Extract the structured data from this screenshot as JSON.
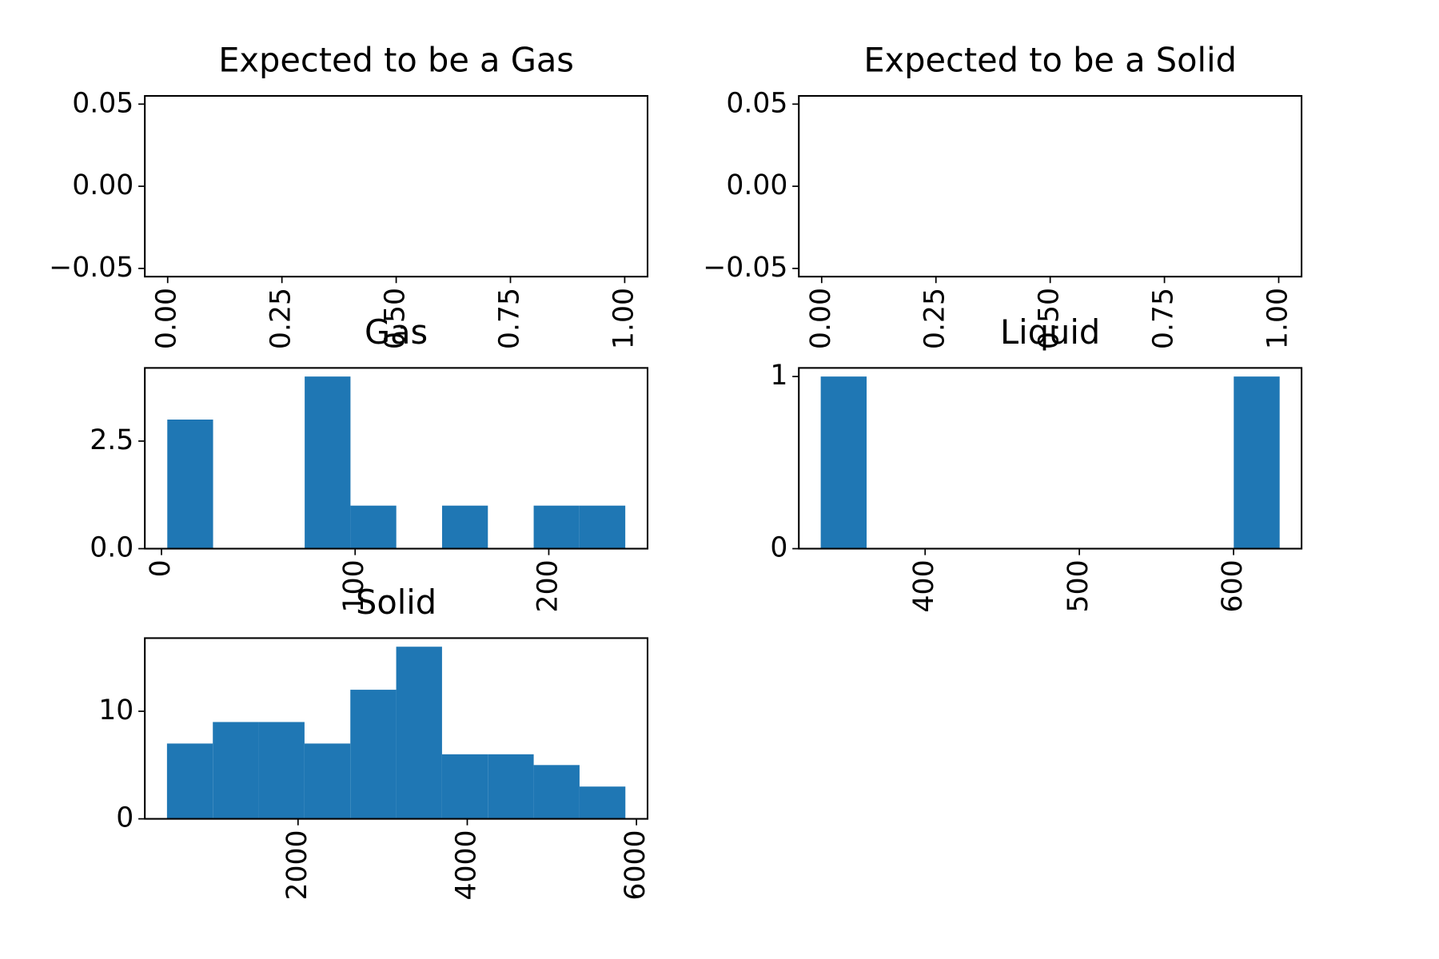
{
  "chart_data": [
    {
      "type": "hist",
      "title": "Expected to be a Gas",
      "xlim": [
        -0.05,
        1.05
      ],
      "xticks": [
        {
          "value": 0,
          "label": "0.00"
        },
        {
          "value": 0.25,
          "label": "0.25"
        },
        {
          "value": 0.5,
          "label": "0.50"
        },
        {
          "value": 0.75,
          "label": "0.75"
        },
        {
          "value": 1,
          "label": "1.00"
        }
      ],
      "ylim": [
        -0.055,
        0.055
      ],
      "yticks": [
        {
          "value": -0.05,
          "label": "−0.05"
        },
        {
          "value": 0,
          "label": "0.00"
        },
        {
          "value": 0.05,
          "label": "0.05"
        }
      ]
    },
    {
      "type": "hist",
      "title": "Expected to be a Solid",
      "xlim": [
        -0.05,
        1.05
      ],
      "xticks": [
        {
          "value": 0,
          "label": "0.00"
        },
        {
          "value": 0.25,
          "label": "0.25"
        },
        {
          "value": 0.5,
          "label": "0.50"
        },
        {
          "value": 0.75,
          "label": "0.75"
        },
        {
          "value": 1,
          "label": "1.00"
        }
      ],
      "ylim": [
        -0.055,
        0.055
      ],
      "yticks": [
        {
          "value": -0.05,
          "label": "−0.05"
        },
        {
          "value": 0,
          "label": "0.00"
        },
        {
          "value": 0.05,
          "label": "0.05"
        }
      ]
    },
    {
      "type": "hist",
      "title": "Gas",
      "color": "#1f77b4",
      "bins": [
        3,
        26.65,
        50.3,
        73.95,
        97.6,
        121.25,
        144.9,
        168.55,
        192.2,
        215.85,
        239.5
      ],
      "counts": [
        3,
        0,
        0,
        4,
        1,
        0,
        1,
        0,
        1,
        1
      ],
      "xlim": [
        -8.6,
        251
      ],
      "xticks": [
        0,
        100,
        200
      ],
      "ylim": [
        0,
        4.2
      ],
      "yticks": [
        {
          "value": 0,
          "label": "0.0"
        },
        2.5
      ]
    },
    {
      "type": "hist",
      "title": "Liquid",
      "color": "#1f77b4",
      "bins": [
        332.3,
        362.06,
        391.82,
        421.58,
        451.34,
        481.1,
        510.86,
        540.62,
        570.38,
        600.14,
        629.9
      ],
      "counts": [
        1,
        0,
        0,
        0,
        0,
        0,
        0,
        0,
        0,
        1
      ],
      "xlim": [
        318.1,
        644.1
      ],
      "xticks": [
        400,
        500,
        600
      ],
      "ylim": [
        0,
        1.05
      ],
      "yticks": [
        0,
        1
      ]
    },
    {
      "type": "hist",
      "title": "Solid",
      "color": "#1f77b4",
      "bins": [
        451,
        992.8,
        1534.6,
        2076.4,
        2618.2,
        3160,
        3701.8,
        4243.6,
        4785.4,
        5327.2,
        5869
      ],
      "counts": [
        7,
        9,
        9,
        7,
        12,
        16,
        6,
        6,
        5,
        3
      ],
      "xlim": [
        189,
        6131
      ],
      "xticks": [
        2000,
        4000,
        6000
      ],
      "ylim": [
        0,
        16.8
      ],
      "yticks": [
        0,
        10
      ]
    }
  ]
}
